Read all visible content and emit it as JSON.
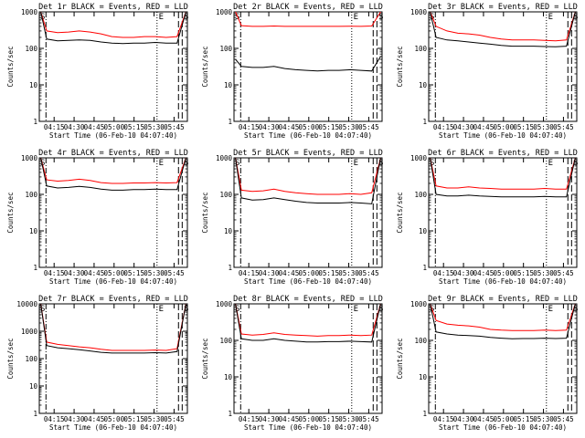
{
  "chart_data": [
    {
      "type": "line",
      "title": "Det 1r BLACK = Events, RED = LLD",
      "ylabel": "Counts/sec",
      "xlabel": "Start Time (06-Feb-10 04:07:40)",
      "yscale": "log",
      "ylim": [
        1,
        1000
      ],
      "yticks": [
        "1",
        "10",
        "100",
        "1000"
      ],
      "xticks": [
        "04:15",
        "04:30",
        "04:45",
        "05:00",
        "05:15",
        "05:30",
        "05:45"
      ],
      "markers": [
        "S",
        "E",
        "S"
      ],
      "series": [
        {
          "color": "#ff0000",
          "values": [
            1000,
            300,
            270,
            280,
            300,
            280,
            250,
            210,
            200,
            200,
            210,
            210,
            200,
            210,
            1000
          ]
        },
        {
          "color": "#000000",
          "values": [
            1000,
            180,
            160,
            165,
            170,
            165,
            150,
            140,
            135,
            140,
            140,
            145,
            140,
            140,
            1000
          ]
        }
      ]
    },
    {
      "type": "line",
      "title": "Det 2r BLACK = Events, RED = LLD",
      "ylabel": "Counts/sec",
      "xlabel": "Start Time (06-Feb-10 04:07:40)",
      "yscale": "log",
      "ylim": [
        1,
        1000
      ],
      "yticks": [
        "1",
        "10",
        "100",
        "1000"
      ],
      "xticks": [
        "04:15",
        "04:30",
        "04:45",
        "05:00",
        "05:15",
        "05:30",
        "05:45"
      ],
      "markers": [
        "S",
        "E",
        "S"
      ],
      "series": [
        {
          "color": "#ff0000",
          "values": [
            1000,
            420,
            400,
            400,
            410,
            400,
            400,
            400,
            400,
            400,
            400,
            405,
            400,
            410,
            1000
          ]
        },
        {
          "color": "#000000",
          "values": [
            50,
            32,
            30,
            30,
            32,
            28,
            26,
            25,
            24,
            25,
            25,
            26,
            25,
            24,
            60
          ]
        }
      ]
    },
    {
      "type": "line",
      "title": "Det 3r BLACK = Events, RED = LLD",
      "ylabel": "Counts/sec",
      "xlabel": "Start Time (06-Feb-10 04:07:40)",
      "yscale": "log",
      "ylim": [
        1,
        1000
      ],
      "yticks": [
        "1",
        "10",
        "100",
        "1000"
      ],
      "xticks": [
        "04:15",
        "04:30",
        "04:45",
        "05:00",
        "05:15",
        "05:30",
        "05:45"
      ],
      "markers": [
        "S",
        "E",
        "S"
      ],
      "series": [
        {
          "color": "#ff0000",
          "values": [
            1000,
            400,
            300,
            260,
            250,
            230,
            200,
            180,
            170,
            170,
            170,
            165,
            160,
            170,
            1000
          ]
        },
        {
          "color": "#000000",
          "values": [
            1000,
            200,
            170,
            160,
            150,
            140,
            130,
            120,
            115,
            115,
            115,
            112,
            110,
            115,
            1000
          ]
        }
      ]
    },
    {
      "type": "line",
      "title": "Det 4r BLACK = Events, RED = LLD",
      "ylabel": "Counts/sec",
      "xlabel": "Start Time (06-Feb-10 04:07:40)",
      "yscale": "log",
      "ylim": [
        1,
        1000
      ],
      "yticks": [
        "1",
        "10",
        "100",
        "1000"
      ],
      "xticks": [
        "04:15",
        "04:30",
        "04:45",
        "05:00",
        "05:15",
        "05:30",
        "05:45"
      ],
      "markers": [
        "S",
        "E",
        "S"
      ],
      "series": [
        {
          "color": "#ff0000",
          "values": [
            1000,
            250,
            230,
            240,
            260,
            240,
            210,
            200,
            200,
            205,
            205,
            210,
            205,
            210,
            1000
          ]
        },
        {
          "color": "#000000",
          "values": [
            1000,
            170,
            150,
            155,
            165,
            155,
            140,
            130,
            130,
            135,
            135,
            140,
            135,
            135,
            1000
          ]
        }
      ]
    },
    {
      "type": "line",
      "title": "Det 5r BLACK = Events, RED = LLD",
      "ylabel": "Counts/sec",
      "xlabel": "Start Time (06-Feb-10 04:07:40)",
      "yscale": "log",
      "ylim": [
        1,
        1000
      ],
      "yticks": [
        "1",
        "10",
        "100",
        "1000"
      ],
      "xticks": [
        "04:15",
        "04:30",
        "04:45",
        "05:00",
        "05:15",
        "05:30",
        "05:45"
      ],
      "markers": [
        "S",
        "E",
        "S"
      ],
      "series": [
        {
          "color": "#ff0000",
          "values": [
            1000,
            130,
            120,
            125,
            140,
            120,
            110,
            105,
            100,
            100,
            100,
            105,
            100,
            110,
            1000
          ]
        },
        {
          "color": "#000000",
          "values": [
            1000,
            80,
            70,
            72,
            80,
            72,
            65,
            60,
            58,
            58,
            58,
            60,
            58,
            55,
            1000
          ]
        }
      ]
    },
    {
      "type": "line",
      "title": "Det 6r BLACK = Events, RED = LLD",
      "ylabel": "Counts/sec",
      "xlabel": "Start Time (06-Feb-10 04:07:40)",
      "yscale": "log",
      "ylim": [
        1,
        1000
      ],
      "yticks": [
        "1",
        "10",
        "100",
        "1000"
      ],
      "xticks": [
        "04:15",
        "04:30",
        "04:45",
        "05:00",
        "05:15",
        "05:30",
        "05:45"
      ],
      "markers": [
        "S",
        "E",
        "S"
      ],
      "series": [
        {
          "color": "#ff0000",
          "values": [
            1000,
            170,
            150,
            150,
            160,
            150,
            145,
            140,
            140,
            140,
            140,
            145,
            140,
            140,
            1000
          ]
        },
        {
          "color": "#000000",
          "values": [
            1000,
            100,
            90,
            90,
            95,
            90,
            88,
            85,
            85,
            85,
            85,
            88,
            85,
            85,
            1000
          ]
        }
      ]
    },
    {
      "type": "line",
      "title": "Det 7r BLACK = Events, RED = LLD",
      "ylabel": "Counts/sec",
      "xlabel": "Start Time (06-Feb-10 04:07:40)",
      "yscale": "log",
      "ylim": [
        1,
        10000
      ],
      "yticks": [
        "1",
        "10",
        "100",
        "1000",
        "10000"
      ],
      "xticks": [
        "04:15",
        "04:30",
        "04:45",
        "05:00",
        "05:15",
        "05:30",
        "05:45"
      ],
      "markers": [
        "S",
        "E",
        "S"
      ],
      "series": [
        {
          "color": "#ff0000",
          "values": [
            10000,
            400,
            330,
            300,
            270,
            250,
            220,
            200,
            200,
            200,
            200,
            205,
            200,
            230,
            10000
          ]
        },
        {
          "color": "#000000",
          "values": [
            10000,
            300,
            250,
            230,
            210,
            190,
            170,
            160,
            160,
            160,
            160,
            165,
            160,
            180,
            10000
          ]
        }
      ]
    },
    {
      "type": "line",
      "title": "Det 8r BLACK = Events, RED = LLD",
      "ylabel": "Counts/sec",
      "xlabel": "Start Time (06-Feb-10 04:07:40)",
      "yscale": "log",
      "ylim": [
        1,
        1000
      ],
      "yticks": [
        "1",
        "10",
        "100",
        "1000"
      ],
      "xticks": [
        "04:15",
        "04:30",
        "04:45",
        "05:00",
        "05:15",
        "05:30",
        "05:45"
      ],
      "markers": [
        "S",
        "E",
        "S"
      ],
      "series": [
        {
          "color": "#ff0000",
          "values": [
            1000,
            150,
            140,
            145,
            160,
            145,
            140,
            135,
            130,
            135,
            135,
            140,
            135,
            140,
            1000
          ]
        },
        {
          "color": "#000000",
          "values": [
            1000,
            110,
            100,
            100,
            110,
            100,
            95,
            90,
            90,
            92,
            92,
            95,
            92,
            90,
            1000
          ]
        }
      ]
    },
    {
      "type": "line",
      "title": "Det 9r BLACK = Events, RED = LLD",
      "ylabel": "Counts/sec",
      "xlabel": "Start Time (06-Feb-10 04:07:40)",
      "yscale": "log",
      "ylim": [
        1,
        1000
      ],
      "yticks": [
        "1",
        "10",
        "100",
        "1000"
      ],
      "xticks": [
        "04:15",
        "04:30",
        "04:45",
        "05:00",
        "05:15",
        "05:30",
        "05:45"
      ],
      "markers": [
        "S",
        "E",
        "S"
      ],
      "series": [
        {
          "color": "#ff0000",
          "values": [
            1000,
            350,
            280,
            260,
            250,
            230,
            200,
            190,
            185,
            185,
            185,
            190,
            185,
            190,
            1000
          ]
        },
        {
          "color": "#000000",
          "values": [
            1000,
            170,
            150,
            140,
            135,
            130,
            120,
            115,
            110,
            112,
            112,
            115,
            112,
            115,
            1000
          ]
        }
      ]
    }
  ]
}
